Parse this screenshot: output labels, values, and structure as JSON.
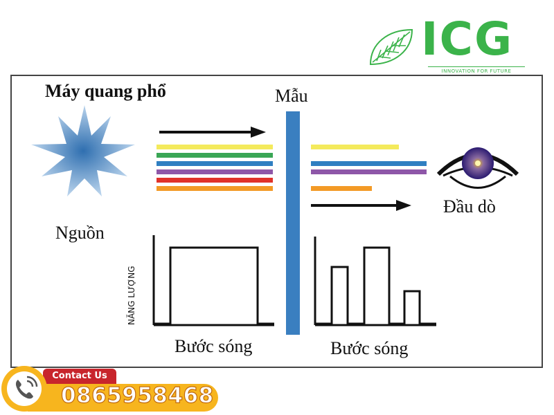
{
  "logo": {
    "brand": "ICG",
    "tagline": "INNOVATION FOR FUTURE",
    "brand_color": "#3bb34a",
    "icon": "leaf-icon"
  },
  "diagram": {
    "title": "Máy quang phổ",
    "sample_label": "Mẫu",
    "source_label": "Nguồn",
    "detector_label": "Đầu dò",
    "energy_label": "NĂNG LƯỢNG",
    "wavelength_label_left": "Bước sóng",
    "wavelength_label_right": "Bước sóng",
    "source_icon": "star-light-icon",
    "detector_icon": "eye-icon",
    "incident_beams": [
      "yellow",
      "green",
      "blue",
      "purple",
      "red",
      "orange"
    ],
    "transmitted_beams": [
      "yellow",
      "blue",
      "purple",
      "orange"
    ],
    "colors": {
      "yellow": "#f4ea5c",
      "green": "#3aa655",
      "blue": "#2f7fc1",
      "purple": "#8e57a8",
      "red": "#e0322a",
      "orange": "#f39a26",
      "sample": "#3a7fc0"
    }
  },
  "contact": {
    "label": "Contact Us",
    "phone": "0865958468",
    "icon": "phone-icon",
    "colors": {
      "pill": "#f7b51e",
      "tab": "#c8252c"
    }
  }
}
